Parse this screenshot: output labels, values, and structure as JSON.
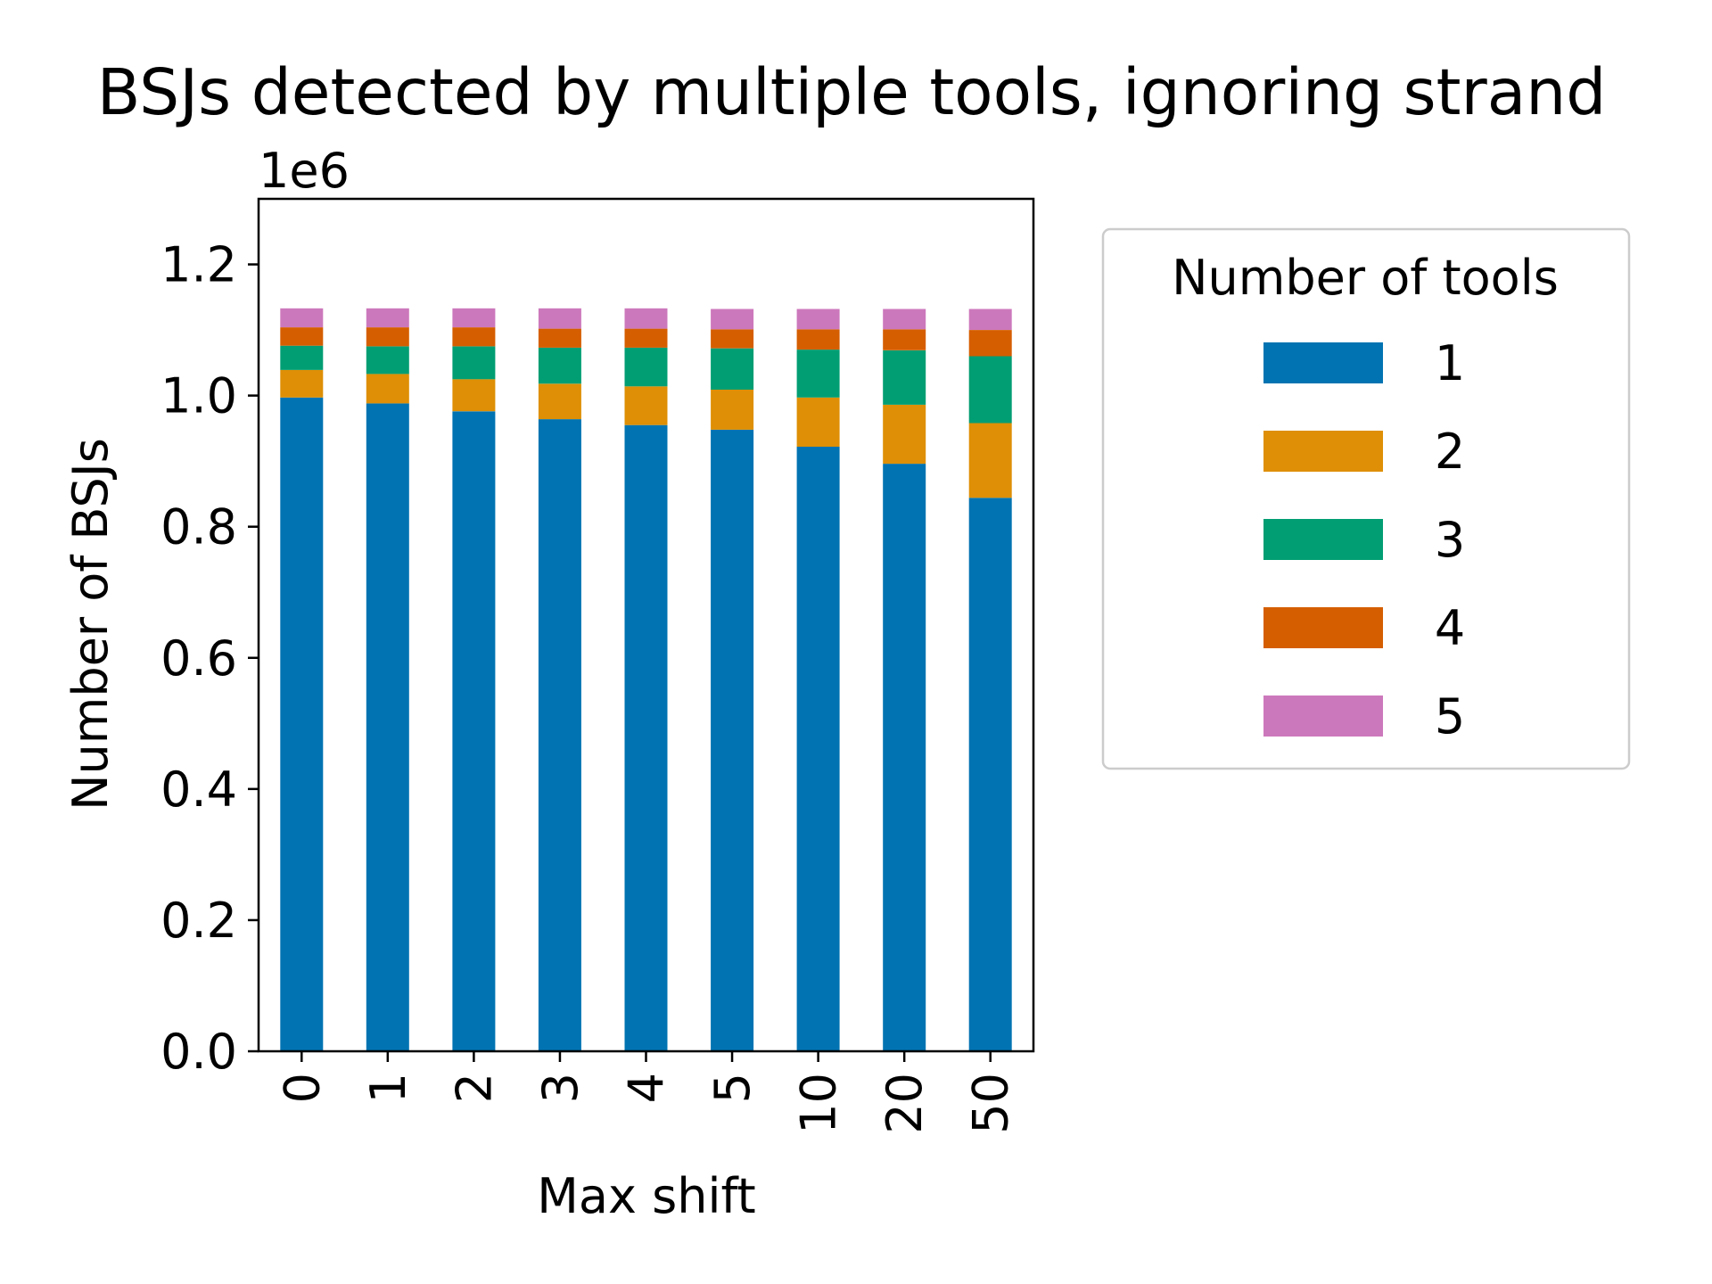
{
  "chart_data": {
    "type": "bar",
    "stacked": true,
    "title": "BSJs detected by multiple tools, ignoring strand",
    "xlabel": "Max shift",
    "ylabel": "Number of BSJs",
    "y_offset_text": "1e6",
    "categories": [
      "0",
      "1",
      "2",
      "3",
      "4",
      "5",
      "10",
      "20",
      "50"
    ],
    "ylim": [
      0,
      1300000
    ],
    "yticks": [
      0,
      200000,
      400000,
      600000,
      800000,
      1000000,
      1200000
    ],
    "ytick_labels": [
      "0.0",
      "0.2",
      "0.4",
      "0.6",
      "0.8",
      "1.0",
      "1.2"
    ],
    "grid": false,
    "legend": {
      "title": "Number of tools",
      "placement": "outside-right"
    },
    "series": [
      {
        "name": "1",
        "color": "#0173b2",
        "values": [
          997000,
          988000,
          976000,
          964000,
          955000,
          948000,
          922000,
          896000,
          844000
        ]
      },
      {
        "name": "2",
        "color": "#de8f05",
        "values": [
          42000,
          45000,
          49000,
          54000,
          59000,
          61000,
          75000,
          90000,
          114000
        ]
      },
      {
        "name": "3",
        "color": "#029e73",
        "values": [
          37000,
          42000,
          50000,
          55000,
          59000,
          63000,
          73000,
          83000,
          102000
        ]
      },
      {
        "name": "4",
        "color": "#d55e00",
        "values": [
          28000,
          29000,
          29000,
          29000,
          29000,
          29000,
          31000,
          32000,
          40000
        ]
      },
      {
        "name": "5",
        "color": "#cc78bc",
        "values": [
          29000,
          29000,
          29000,
          31000,
          31000,
          31000,
          31000,
          31000,
          32000
        ]
      }
    ]
  }
}
